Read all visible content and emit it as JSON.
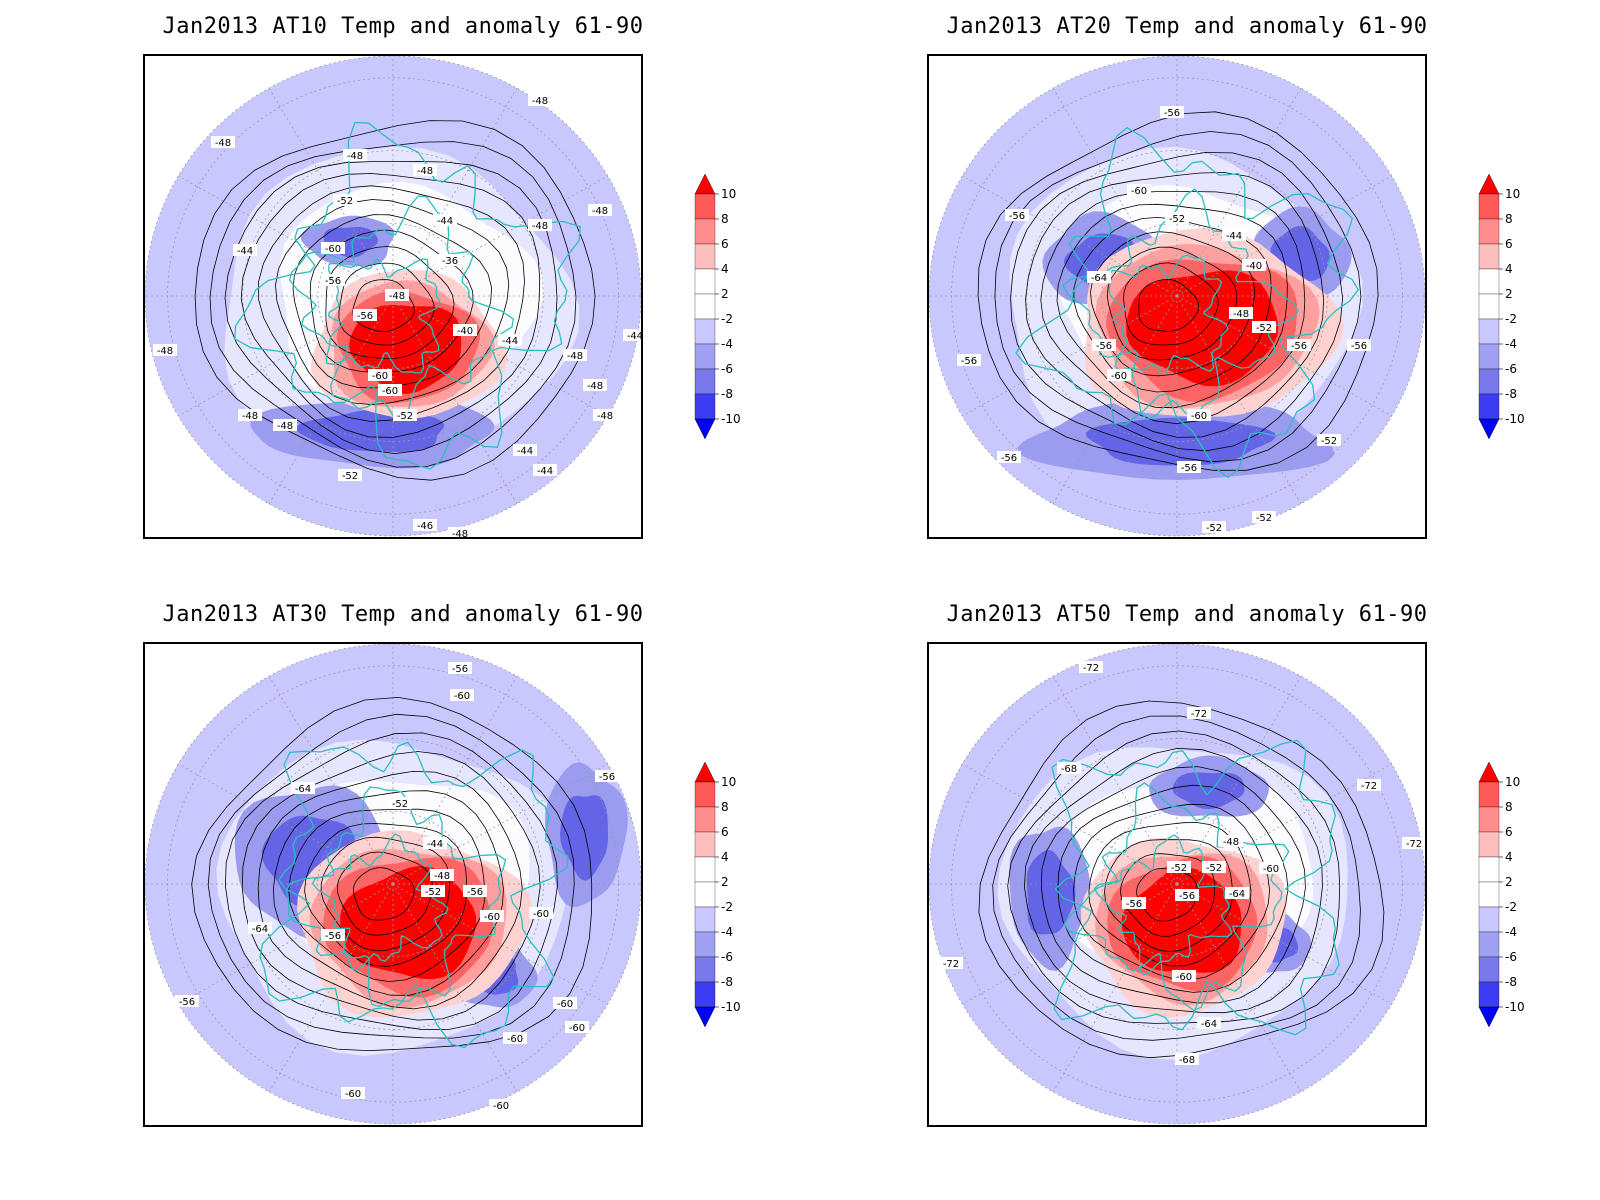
{
  "panels": [
    {
      "title": "Jan2013 AT10 Temp and anomaly 61-90",
      "contour_labels": [
        "-48",
        "-48",
        "-48",
        "-48",
        "-52",
        "-44",
        "-48",
        "-48",
        "-44",
        "-60",
        "-56",
        "-36",
        "-56",
        "-48",
        "-40",
        "-44",
        "-48",
        "-44",
        "-48",
        "-60",
        "-60",
        "-52",
        "-48",
        "-48",
        "-48",
        "-48",
        "-44",
        "-44",
        "-52",
        "-46",
        "-48"
      ]
    },
    {
      "title": "Jan2013 AT20 Temp and anomaly 61-90",
      "contour_labels": [
        "-56",
        "-60",
        "-56",
        "-52",
        "-44",
        "-64",
        "-40",
        "-48",
        "-56",
        "-52",
        "-56",
        "-56",
        "-60",
        "-56",
        "-60",
        "-56",
        "-52",
        "-56",
        "-52",
        "-52"
      ]
    },
    {
      "title": "Jan2013 AT30 Temp and anomaly 61-90",
      "contour_labels": [
        "-56",
        "-60",
        "-64",
        "-56",
        "-52",
        "-44",
        "-48",
        "-52",
        "-56",
        "-64",
        "-56",
        "-60",
        "-60",
        "-56",
        "-60",
        "-60",
        "-60",
        "-60",
        "-60"
      ]
    },
    {
      "title": "Jan2013 AT50 Temp and anomaly 61-90",
      "contour_labels": [
        "-72",
        "-72",
        "-68",
        "-72",
        "-48",
        "-72",
        "-52",
        "-52",
        "-60",
        "-56",
        "-56",
        "-64",
        "-72",
        "-60",
        "-64",
        "-68"
      ]
    }
  ],
  "colorbar": {
    "labels": [
      "10",
      "8",
      "6",
      "4",
      "2",
      "-2",
      "-4",
      "-6",
      "-8",
      "-10"
    ],
    "colors": [
      "#ff0000",
      "#ff5a5a",
      "#ff8c8c",
      "#ffbebe",
      "#ffffff",
      "#ffffff",
      "#c8c8ff",
      "#a0a0f5",
      "#7878eb",
      "#3c3cf0",
      "#0000ff"
    ]
  },
  "colors": {
    "coastline": "#2abfbf",
    "contour": "#000000",
    "grid": "#9a9a9a"
  }
}
